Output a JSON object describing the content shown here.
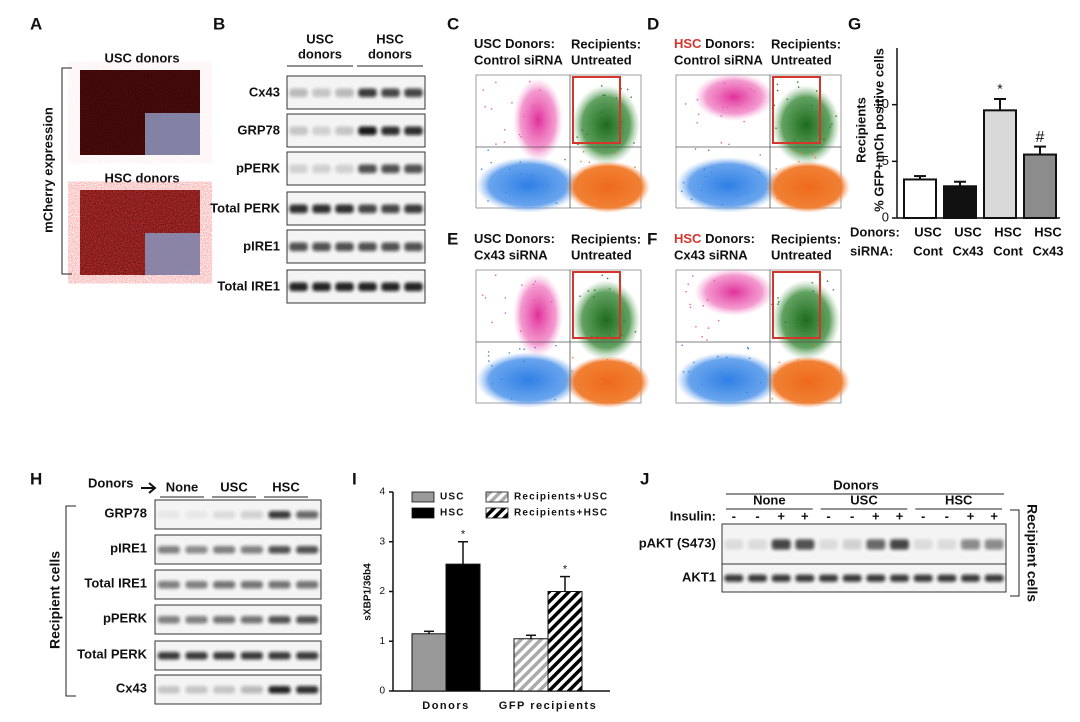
{
  "panel_labels": [
    "A",
    "B",
    "C",
    "D",
    "E",
    "F",
    "G",
    "H",
    "I",
    "J"
  ],
  "panel_a": {
    "images": [
      "USC donors",
      "HSC donors"
    ],
    "axis_label": "mCherry expression"
  },
  "panel_b": {
    "groups": [
      [
        "USC",
        "donors"
      ],
      [
        "HSC",
        "donors"
      ]
    ],
    "rows": [
      "Cx43",
      "GRP78",
      "pPERK",
      "Total PERK",
      "pIRE1",
      "Total IRE1"
    ]
  },
  "flow_plots": [
    {
      "donor": "USC",
      "donor_color": "#111111",
      "donor_suffix": "Donors:",
      "sirna": "Control siRNA",
      "recipients": "Recipients:",
      "treatment": "Untreated"
    },
    {
      "donor": "HSC",
      "donor_color": "#d6352b",
      "donor_suffix": "Donors:",
      "sirna": "Control siRNA",
      "recipients": "Recipients:",
      "treatment": "Untreated"
    },
    {
      "donor": "USC",
      "donor_color": "#111111",
      "donor_suffix": "Donors:",
      "sirna": "Cx43 siRNA",
      "recipients": "Recipients:",
      "treatment": "Untreated"
    },
    {
      "donor": "HSC",
      "donor_color": "#d6352b",
      "donor_suffix": "Donors:",
      "sirna": "Cx43 siRNA",
      "recipients": "Recipients:",
      "treatment": "Untreated"
    }
  ],
  "chart_data": [
    {
      "type": "bar",
      "y_label": [
        "Recipients",
        "% GFP+mCh positive cells"
      ],
      "category_rows": [
        {
          "label": "Donors:",
          "values": [
            "USC",
            "USC",
            "HSC",
            "HSC"
          ],
          "colors": [
            "#111111",
            "#111111",
            "#d6352b",
            "#d6352b"
          ]
        },
        {
          "label": "siRNA:",
          "values": [
            "Cont",
            "Cx43",
            "Cont",
            "Cx43"
          ],
          "colors": [
            "#111111",
            "#111111",
            "#d6352b",
            "#d6352b"
          ]
        }
      ],
      "values": [
        3.4,
        2.8,
        9.5,
        5.6
      ],
      "errors": [
        0.3,
        0.4,
        1.0,
        0.7
      ],
      "colors": [
        "#ffffff",
        "#111111",
        "#d9d9d9",
        "#8c8c8c"
      ],
      "annotations": [
        {
          "index": 2,
          "text": "*"
        },
        {
          "index": 3,
          "text": "#"
        }
      ],
      "ylim": [
        0,
        15
      ],
      "yticks": [
        0,
        5,
        10
      ]
    },
    {
      "type": "grouped-bar",
      "y_label": "sXBP1/36b4",
      "categories": [
        "Donors",
        "GFP recipients"
      ],
      "series": [
        {
          "name": "USC",
          "color": "#999999",
          "pattern": "solid",
          "values": [
            1.15,
            null
          ],
          "errors": [
            0.05,
            null
          ]
        },
        {
          "name": "HSC",
          "color": "#000000",
          "pattern": "solid",
          "values": [
            2.55,
            null
          ],
          "errors": [
            0.45,
            null
          ]
        },
        {
          "name": "Recipients+USC",
          "color": "#aaaaaa",
          "pattern": "hatch",
          "values": [
            null,
            1.05
          ],
          "errors": [
            null,
            0.07
          ]
        },
        {
          "name": "Recipients+HSC",
          "color": "#000000",
          "pattern": "hatch",
          "values": [
            null,
            2.0
          ],
          "errors": [
            null,
            0.3
          ]
        }
      ],
      "annotations": [
        {
          "series": 1,
          "index": 0,
          "text": "*"
        },
        {
          "series": 3,
          "index": 1,
          "text": "*"
        }
      ],
      "ylim": [
        0,
        4
      ],
      "yticks": [
        0,
        1,
        2,
        3,
        4
      ]
    }
  ],
  "panel_h": {
    "header": "Donors",
    "groups": [
      "None",
      "USC",
      "HSC"
    ],
    "rows": [
      "GRP78",
      "pIRE1",
      "Total IRE1",
      "pPERK",
      "Total PERK",
      "Cx43"
    ],
    "side_label": "Recipient cells"
  },
  "panel_j": {
    "header": "Donors",
    "groups": [
      "None",
      "USC",
      "HSC"
    ],
    "insulin_label": "Insulin:",
    "insulin": [
      "-",
      "-",
      "+",
      "+",
      "-",
      "-",
      "+",
      "+",
      "-",
      "-",
      "+",
      "+"
    ],
    "rows": [
      "pAKT (S473)",
      "AKT1"
    ],
    "side_label": "Recipient cells"
  }
}
